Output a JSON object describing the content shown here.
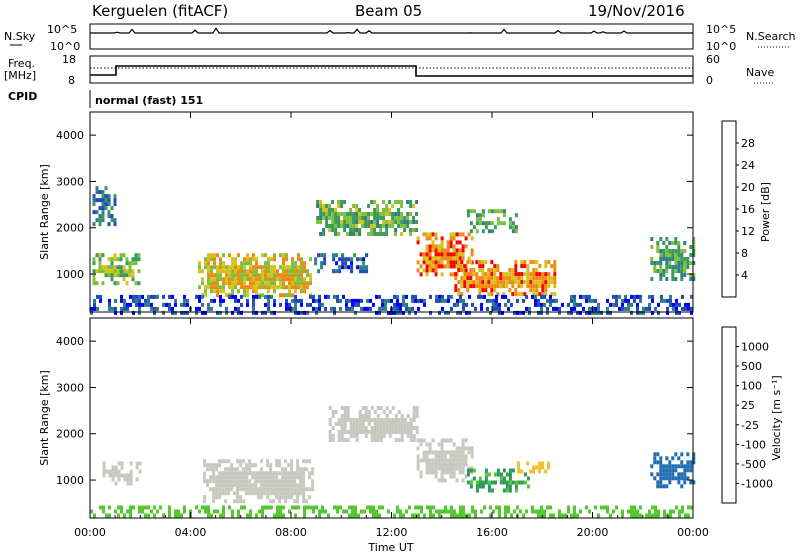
{
  "header": {
    "station": "Kerguelen (fitACF)",
    "beam": "Beam 05",
    "date": "19/Nov/2016"
  },
  "left_labels": {
    "nsky": "N.Sky",
    "freq_line1": "Freq.",
    "freq_line2": "[MHz]",
    "cpid": "CPID"
  },
  "right_labels": {
    "nsearch": "N.Search",
    "nave": "Nave"
  },
  "noise_panel": {
    "left_ticks": [
      "10^5",
      "10^0"
    ],
    "right_ticks": [
      "10^5",
      "10^0"
    ]
  },
  "freq_panel": {
    "left_ticks": [
      "18",
      "8"
    ],
    "right_ticks": [
      "60",
      "0"
    ]
  },
  "cpid_text": "normal (fast) 151",
  "colors": {
    "power_scale": [
      "#0000ff",
      "#1f4db3",
      "#2e7c8c",
      "#3a9a5a",
      "#7fbf3f",
      "#d6c21a",
      "#f08a10",
      "#ff0000"
    ],
    "velocity_scale": [
      "#ff0000",
      "#f04a10",
      "#f08a10",
      "#f0c030",
      "#c8c8c0",
      "#c8c8c0",
      "#55c830",
      "#2e9a5a",
      "#1f6eb3",
      "#1f3fb3"
    ]
  },
  "chart_data": [
    {
      "type": "heatmap",
      "name": "power",
      "ylabel": "Slant Range [km]",
      "yticks": [
        "1000",
        "2000",
        "3000",
        "4000"
      ],
      "ylim": [
        180,
        4500
      ],
      "xlim": [
        0,
        24
      ],
      "colorbar_label": "Power [dB]",
      "colorbar_ticks": [
        "4",
        "8",
        "12",
        "16",
        "20",
        "24",
        "28"
      ],
      "colorbar_range": [
        0,
        32
      ],
      "regions": [
        {
          "t": [
            0.1,
            1.0
          ],
          "r": [
            2100,
            2900
          ],
          "v": 10
        },
        {
          "t": [
            0.1,
            2.0
          ],
          "r": [
            800,
            1450
          ],
          "v": 18
        },
        {
          "t": [
            4.3,
            8.8
          ],
          "r": [
            550,
            1450
          ],
          "v": 22
        },
        {
          "t": [
            8.8,
            11.0
          ],
          "r": [
            1100,
            1450
          ],
          "v": 8
        },
        {
          "t": [
            9.0,
            13.0
          ],
          "r": [
            1900,
            2600
          ],
          "v": 16
        },
        {
          "t": [
            13.0,
            15.2
          ],
          "r": [
            1000,
            1900
          ],
          "v": 26
        },
        {
          "t": [
            14.5,
            18.5
          ],
          "r": [
            600,
            1300
          ],
          "v": 25
        },
        {
          "t": [
            15.0,
            17.0
          ],
          "r": [
            1900,
            2400
          ],
          "v": 14
        },
        {
          "t": [
            22.3,
            24.0
          ],
          "r": [
            900,
            1800
          ],
          "v": 14
        },
        {
          "t": [
            0.0,
            24.0
          ],
          "r": [
            200,
            550
          ],
          "v": 6
        }
      ]
    },
    {
      "type": "heatmap",
      "name": "velocity",
      "ylabel": "Slant Range [km]",
      "yticks": [
        "1000",
        "2000",
        "3000",
        "4000"
      ],
      "ylim": [
        180,
        4500
      ],
      "xlim": [
        0,
        24
      ],
      "xticks": [
        "00:00",
        "04:00",
        "08:00",
        "12:00",
        "16:00",
        "20:00",
        "00:00"
      ],
      "xlabel": "Time UT",
      "colorbar_label": "Velocity [m s⁻¹]",
      "colorbar_ticks": [
        "-1000",
        "-500",
        "-100",
        "-25",
        "25",
        "100",
        "500",
        "1000"
      ],
      "regions": [
        {
          "t": [
            0.5,
            2.0
          ],
          "r": [
            900,
            1400
          ],
          "v": 0
        },
        {
          "t": [
            4.5,
            8.8
          ],
          "r": [
            500,
            1450
          ],
          "v": 0
        },
        {
          "t": [
            9.5,
            13.0
          ],
          "r": [
            1900,
            2600
          ],
          "v": 0
        },
        {
          "t": [
            13.0,
            15.2
          ],
          "r": [
            1000,
            1900
          ],
          "v": 0
        },
        {
          "t": [
            15.0,
            17.5
          ],
          "r": [
            800,
            1250
          ],
          "v": 150
        },
        {
          "t": [
            17.0,
            18.2
          ],
          "r": [
            1150,
            1400
          ],
          "v": -300
        },
        {
          "t": [
            22.3,
            24.0
          ],
          "r": [
            900,
            1600
          ],
          "v": 600
        },
        {
          "t": [
            0.0,
            24.0
          ],
          "r": [
            200,
            450
          ],
          "v": 50
        }
      ]
    }
  ]
}
